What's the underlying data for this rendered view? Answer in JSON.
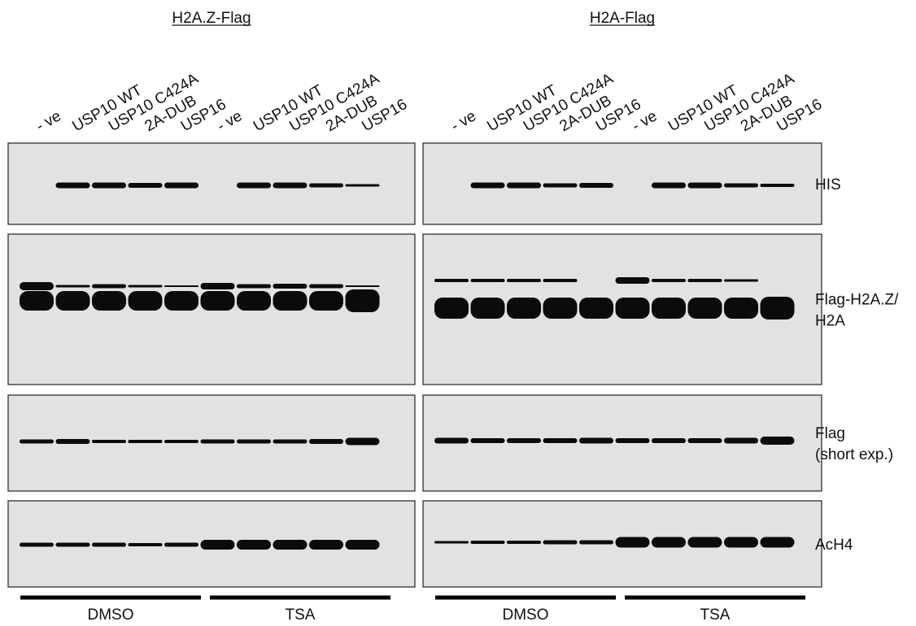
{
  "panels": [
    {
      "title": "H2A.Z-Flag",
      "lanes": [
        "- ve",
        "USP10 WT",
        "USP10 C424A",
        "2A-DUB",
        "USP16",
        "- ve",
        "USP10 WT",
        "USP10 C424A",
        "2A-DUB",
        "USP16"
      ],
      "treatments": [
        "DMSO",
        "TSA"
      ]
    },
    {
      "title": "H2A-Flag",
      "lanes": [
        "- ve",
        "USP10 WT",
        "USP10 C424A",
        "2A-DUB",
        "USP16",
        "- ve",
        "USP10 WT",
        "USP10 C424A",
        "2A-DUB",
        "USP16"
      ],
      "treatments": [
        "DMSO",
        "TSA"
      ]
    }
  ],
  "rows": [
    {
      "label": [
        "HIS"
      ]
    },
    {
      "label": [
        "Flag-H2A.Z/",
        "H2A"
      ]
    },
    {
      "label": [
        "Flag",
        "(short exp.)"
      ]
    },
    {
      "label": [
        "AcH4"
      ]
    }
  ]
}
